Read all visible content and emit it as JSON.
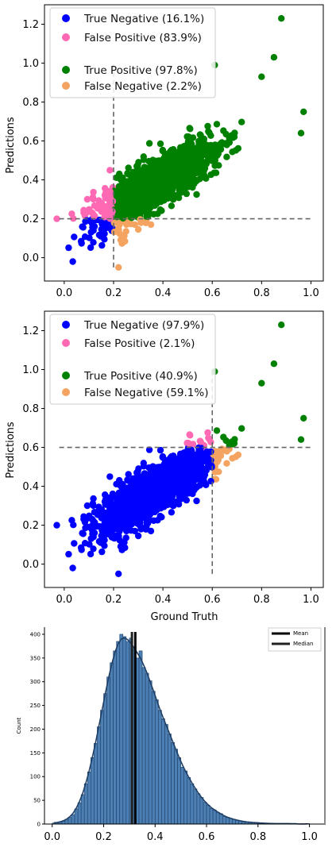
{
  "chart_data": [
    {
      "type": "scatter",
      "ylabel": "Predictions",
      "xlim": [
        -0.08,
        1.05
      ],
      "ylim": [
        -0.12,
        1.3
      ],
      "xticks": [
        "0.0",
        "0.2",
        "0.4",
        "0.6",
        "0.8",
        "1.0"
      ],
      "yticks": [
        "0.0",
        "0.2",
        "0.4",
        "0.6",
        "0.8",
        "1.0",
        "1.2"
      ],
      "threshold": {
        "x": 0.2,
        "y": 0.2
      },
      "legend_placement": "top-left",
      "series": [
        {
          "name": "True Negative (16.1%)",
          "color": "#0000ff",
          "quadrant": "x<0.2, y<0.2"
        },
        {
          "name": "False Positive (83.9%)",
          "color": "#ff69b4",
          "quadrant": "x<0.2, y>=0.2"
        },
        {
          "name": "True Positive (97.8%)",
          "color": "#008000",
          "quadrant": "x>=0.2, y>=0.2"
        },
        {
          "name": "False Negative (2.2%)",
          "color": "#f4a460",
          "quadrant": "x>=0.2, y<0.2"
        }
      ],
      "outliers": [
        [
          0.88,
          1.23
        ],
        [
          0.22,
          -0.05
        ],
        [
          -0.03,
          0.2
        ],
        [
          0.85,
          1.03
        ],
        [
          0.97,
          0.75
        ],
        [
          0.96,
          0.64
        ],
        [
          0.8,
          0.93
        ],
        [
          0.61,
          0.99
        ]
      ]
    },
    {
      "type": "scatter",
      "xlabel": "Ground Truth",
      "ylabel": "Predictions",
      "xlim": [
        -0.08,
        1.05
      ],
      "ylim": [
        -0.12,
        1.3
      ],
      "xticks": [
        "0.0",
        "0.2",
        "0.4",
        "0.6",
        "0.8",
        "1.0"
      ],
      "yticks": [
        "0.0",
        "0.2",
        "0.4",
        "0.6",
        "0.8",
        "1.0",
        "1.2"
      ],
      "threshold": {
        "x": 0.6,
        "y": 0.6
      },
      "legend_placement": "top-left",
      "series": [
        {
          "name": "True Negative (97.9%)",
          "color": "#0000ff",
          "quadrant": "x<0.6, y<0.6"
        },
        {
          "name": "False Positive (2.1%)",
          "color": "#ff69b4",
          "quadrant": "x<0.6, y>=0.6"
        },
        {
          "name": "True Positive (40.9%)",
          "color": "#008000",
          "quadrant": "x>=0.6, y>=0.6"
        },
        {
          "name": "False Negative (59.1%)",
          "color": "#f4a460",
          "quadrant": "x>=0.6, y<0.6"
        }
      ],
      "outliers": [
        [
          0.88,
          1.23
        ],
        [
          0.22,
          -0.05
        ],
        [
          -0.03,
          0.2
        ],
        [
          0.85,
          1.03
        ],
        [
          0.97,
          0.75
        ],
        [
          0.96,
          0.64
        ],
        [
          0.8,
          0.93
        ],
        [
          0.61,
          0.99
        ]
      ]
    },
    {
      "type": "bar",
      "ylabel": "Count",
      "xticks": [
        "0.0",
        "0.2",
        "0.4",
        "0.6",
        "0.8",
        "1.0"
      ],
      "yticks": [
        "0",
        "50",
        "100",
        "150",
        "200",
        "250",
        "300",
        "350",
        "400"
      ],
      "xlim": [
        -0.03,
        1.06
      ],
      "ylim": [
        0,
        415
      ],
      "bin_width": 0.0125,
      "x": [
        0.00625,
        0.01875,
        0.03125,
        0.04375,
        0.05625,
        0.06875,
        0.08125,
        0.09375,
        0.10625,
        0.11875,
        0.13125,
        0.14375,
        0.15625,
        0.16875,
        0.18125,
        0.19375,
        0.20625,
        0.21875,
        0.23125,
        0.24375,
        0.25625,
        0.26875,
        0.28125,
        0.29375,
        0.30625,
        0.31875,
        0.33125,
        0.34375,
        0.35625,
        0.36875,
        0.38125,
        0.39375,
        0.40625,
        0.41875,
        0.43125,
        0.44375,
        0.45625,
        0.46875,
        0.48125,
        0.49375,
        0.50625,
        0.51875,
        0.53125,
        0.54375,
        0.55625,
        0.56875,
        0.58125,
        0.59375,
        0.60625,
        0.61875,
        0.63125,
        0.64375,
        0.65625,
        0.66875,
        0.68125,
        0.69375,
        0.70625,
        0.71875,
        0.73125,
        0.74375,
        0.75625,
        0.76875,
        0.78125,
        0.79375,
        0.80625,
        0.81875,
        0.83125,
        0.84375,
        0.85625,
        0.86875,
        0.88125,
        0.89375,
        0.90625,
        0.91875,
        0.93125,
        0.94375,
        0.95625,
        0.96875,
        0.98125,
        0.99375
      ],
      "values": [
        2,
        3,
        4,
        6,
        10,
        14,
        20,
        32,
        45,
        62,
        85,
        110,
        140,
        170,
        205,
        240,
        275,
        310,
        340,
        365,
        385,
        400,
        395,
        385,
        392,
        370,
        350,
        365,
        330,
        318,
        302,
        280,
        262,
        240,
        222,
        210,
        190,
        172,
        158,
        140,
        120,
        112,
        98,
        85,
        74,
        64,
        56,
        46,
        40,
        33,
        30,
        25,
        22,
        16,
        14,
        12,
        10,
        8,
        7,
        5,
        4,
        4,
        3,
        3,
        2,
        2,
        2,
        1,
        1,
        1,
        1,
        1,
        1,
        1,
        1,
        1,
        0,
        0,
        0,
        1
      ],
      "mean": 0.323,
      "median": 0.31,
      "legend": [
        "Mean",
        "Median"
      ],
      "legend_placement": "top-right"
    }
  ]
}
